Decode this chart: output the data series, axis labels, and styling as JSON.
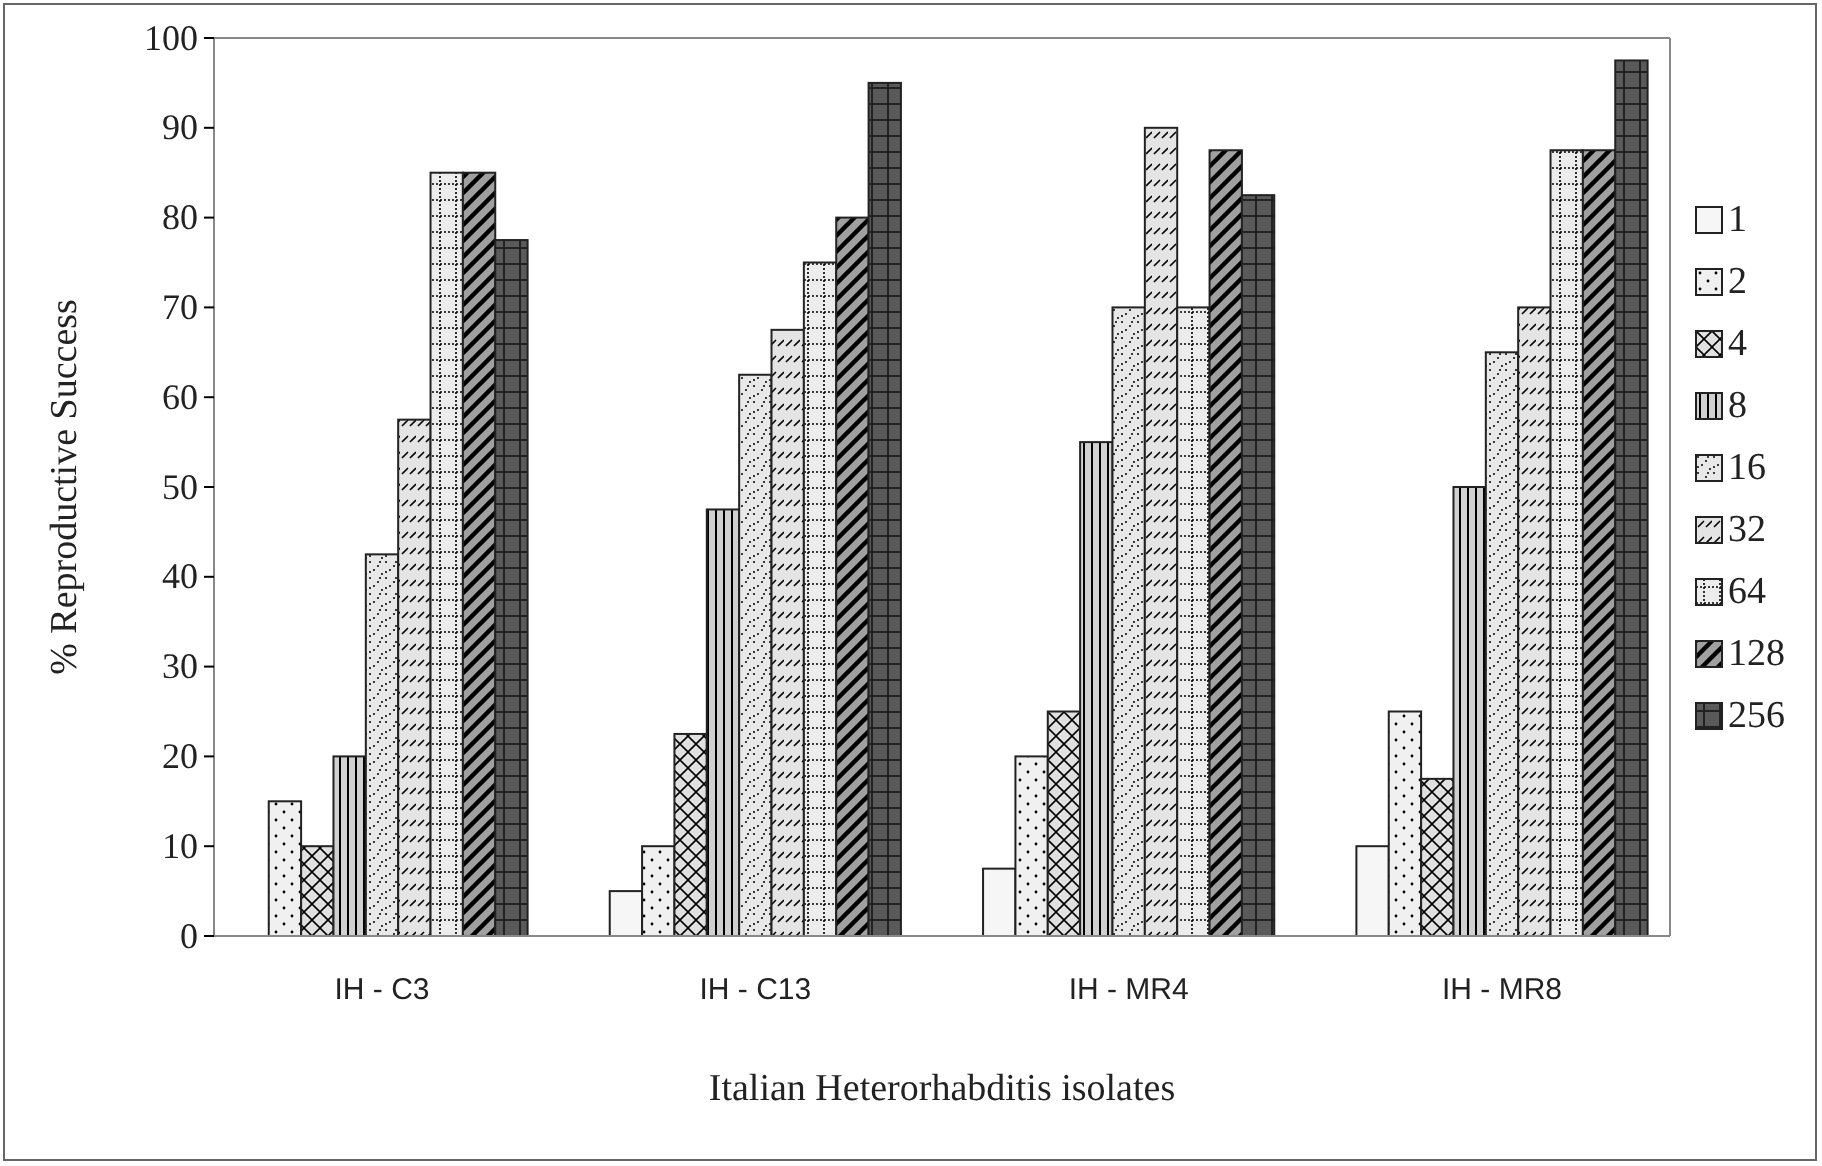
{
  "chart_data": {
    "type": "bar",
    "xlabel": "Italian Heterorhabditis isolates",
    "ylabel": "% Reproductive Success",
    "categories": [
      "IH - C3",
      "IH - C13",
      "IH - MR4",
      "IH - MR8"
    ],
    "ylim": [
      0,
      100
    ],
    "yticks": [
      0,
      10,
      20,
      30,
      40,
      50,
      60,
      70,
      80,
      90,
      100
    ],
    "legend": "right",
    "series": [
      {
        "name": "1",
        "color": "#f6f6f6",
        "values": [
          0,
          5,
          7.5,
          10
        ]
      },
      {
        "name": "2",
        "color": "#f0f0f0",
        "values": [
          15,
          10,
          20,
          25
        ]
      },
      {
        "name": "4",
        "color": "#e0e0e0",
        "values": [
          10,
          22.5,
          25,
          17.5
        ]
      },
      {
        "name": "8",
        "color": "#d0d0d0",
        "values": [
          20,
          47.5,
          55,
          50
        ]
      },
      {
        "name": "16",
        "color": "#e8e8e8",
        "values": [
          42.5,
          62.5,
          70,
          65
        ]
      },
      {
        "name": "32",
        "color": "#e4e4e4",
        "values": [
          57.5,
          67.5,
          90,
          70
        ]
      },
      {
        "name": "64",
        "color": "#ececec",
        "values": [
          85,
          75,
          70,
          87.5
        ]
      },
      {
        "name": "128",
        "color": "#a0a0a0",
        "values": [
          85,
          80,
          87.5,
          87.5
        ]
      },
      {
        "name": "256",
        "color": "#707070",
        "values": [
          77.5,
          95,
          82.5,
          97.5
        ]
      }
    ]
  }
}
